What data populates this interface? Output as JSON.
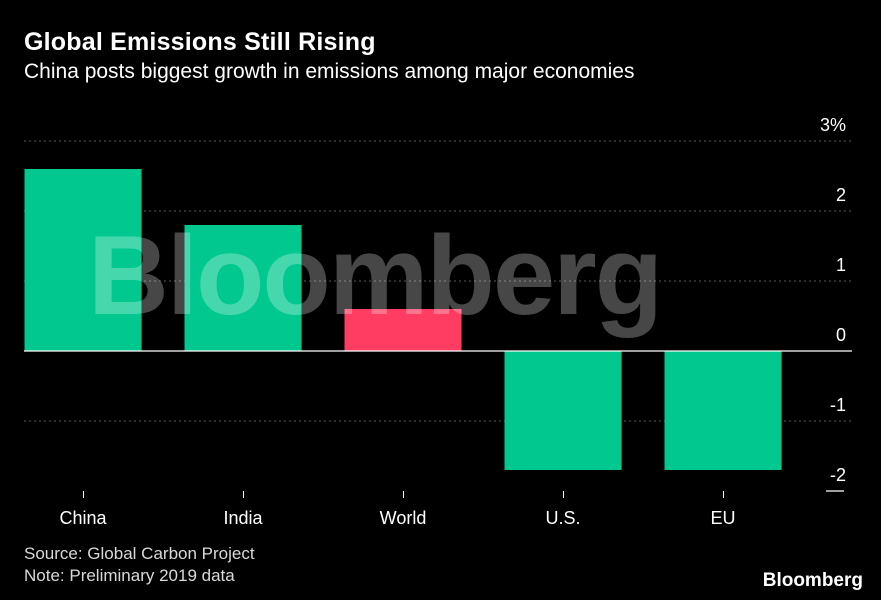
{
  "chart_data": {
    "type": "bar",
    "title": "Global Emissions Still Rising",
    "subtitle": "China posts biggest growth in emissions among major economies",
    "categories": [
      "China",
      "India",
      "World",
      "U.S.",
      "EU"
    ],
    "values": [
      2.6,
      1.8,
      0.6,
      -1.7,
      -1.7
    ],
    "colors": [
      "#00c88e",
      "#00c88e",
      "#ff3d63",
      "#00c88e",
      "#00c88e"
    ],
    "ylim": [
      -2,
      3
    ],
    "yticks": [
      -2,
      -1,
      0,
      1,
      2,
      3
    ],
    "ytick_labels": [
      "-2",
      "-1",
      "0",
      "1",
      "2",
      "3%"
    ],
    "xlabel": "",
    "ylabel": "",
    "grid": true
  },
  "source_note": "Source: Global Carbon Project",
  "data_note": "Note: Preliminary 2019 data",
  "watermark": "Bloomberg",
  "brand": "Bloomberg",
  "colors": {
    "background": "#000000",
    "grid": "#5a5a5a",
    "text": "#ffffff"
  }
}
